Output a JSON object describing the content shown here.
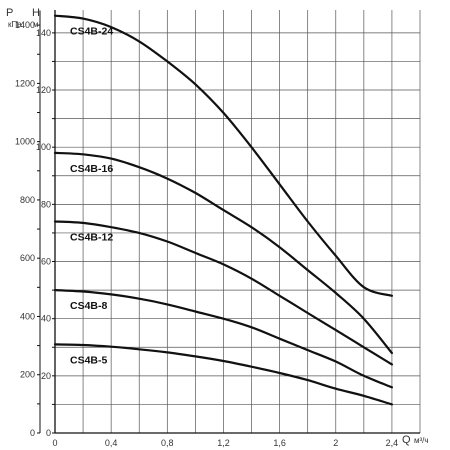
{
  "chart_data": {
    "type": "line",
    "axes": {
      "p_label": "P",
      "p_unit": "кПа",
      "h_label": "H",
      "h_unit": "м",
      "q_label": "Q",
      "q_unit": "м³/ч"
    },
    "x_ticks": [
      "0",
      "0,4",
      "0,8",
      "1,2",
      "1,6",
      "2",
      "2,4"
    ],
    "h_ticks": [
      "0",
      "20",
      "40",
      "60",
      "80",
      "100",
      "120",
      "140"
    ],
    "p_ticks": [
      "0",
      "200",
      "400",
      "600",
      "800",
      "1000",
      "1200",
      "1400"
    ],
    "xlim": [
      0,
      2.6
    ],
    "ylim_h": [
      0,
      148
    ],
    "grid": true,
    "series": [
      {
        "name": "CS4B-24",
        "x": [
          0,
          0.2,
          0.4,
          0.6,
          0.8,
          1.0,
          1.2,
          1.4,
          1.6,
          1.8,
          2.0,
          2.2,
          2.4
        ],
        "y": [
          146,
          145,
          142,
          137,
          130,
          122,
          112,
          100,
          87,
          74,
          62,
          51,
          48
        ]
      },
      {
        "name": "CS4B-16",
        "x": [
          0,
          0.2,
          0.4,
          0.6,
          0.8,
          1.0,
          1.2,
          1.4,
          1.6,
          1.8,
          2.0,
          2.2,
          2.4
        ],
        "y": [
          98,
          97.5,
          96,
          93,
          89,
          84,
          78,
          72,
          65,
          57,
          49,
          40,
          28
        ]
      },
      {
        "name": "CS4B-12",
        "x": [
          0,
          0.2,
          0.4,
          0.6,
          0.8,
          1.0,
          1.2,
          1.4,
          1.6,
          1.8,
          2.0,
          2.2,
          2.4
        ],
        "y": [
          74,
          73.5,
          72,
          70,
          67,
          63,
          59,
          54,
          48,
          42,
          36,
          30,
          24
        ]
      },
      {
        "name": "CS4B-8",
        "x": [
          0,
          0.2,
          0.4,
          0.6,
          0.8,
          1.0,
          1.2,
          1.4,
          1.6,
          1.8,
          2.0,
          2.2,
          2.4
        ],
        "y": [
          50,
          49.5,
          48.5,
          47,
          45,
          42.5,
          40,
          37,
          33,
          29,
          25,
          20,
          16
        ]
      },
      {
        "name": "CS4B-5",
        "x": [
          0,
          0.2,
          0.4,
          0.6,
          0.8,
          1.0,
          1.2,
          1.4,
          1.6,
          1.8,
          2.0,
          2.2,
          2.4
        ],
        "y": [
          31,
          30.8,
          30.2,
          29.3,
          28.2,
          26.8,
          25.2,
          23.2,
          21,
          18.5,
          15.5,
          13,
          10
        ]
      }
    ]
  }
}
